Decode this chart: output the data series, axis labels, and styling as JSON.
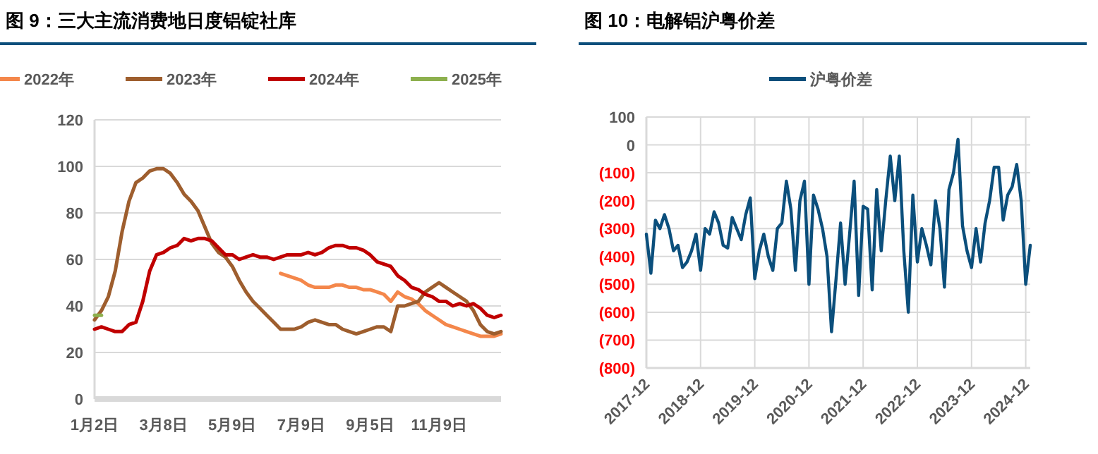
{
  "chart_data": [
    {
      "type": "line",
      "title": "图 9：三大主流消费地日度铝锭社库",
      "legend": "top",
      "grid": "y",
      "marker": "none",
      "line_style": "solid",
      "categories": [
        "1月2日",
        null,
        null,
        null,
        null,
        null,
        null,
        null,
        null,
        null,
        "3月8日",
        null,
        null,
        null,
        null,
        null,
        null,
        null,
        null,
        null,
        "5月9日",
        null,
        null,
        null,
        null,
        null,
        null,
        null,
        null,
        null,
        "7月9日",
        null,
        null,
        null,
        null,
        null,
        null,
        null,
        null,
        null,
        "9月5日",
        null,
        null,
        null,
        null,
        null,
        null,
        null,
        null,
        null,
        "11月9日",
        null,
        null,
        null,
        null,
        null,
        null,
        null,
        null,
        null
      ],
      "ylim": [
        0,
        120
      ],
      "yticks": [
        0,
        20,
        40,
        60,
        80,
        100,
        120
      ],
      "series": [
        {
          "name": "2022年",
          "color": "#f4874b",
          "values": [
            null,
            null,
            null,
            null,
            null,
            null,
            null,
            null,
            null,
            null,
            null,
            null,
            null,
            null,
            null,
            null,
            null,
            null,
            null,
            null,
            null,
            null,
            null,
            null,
            null,
            null,
            null,
            54,
            53,
            52,
            51,
            49,
            48,
            48,
            48,
            49,
            49,
            48,
            48,
            47,
            47,
            46,
            45,
            42,
            46,
            44,
            43,
            41,
            38,
            36,
            34,
            32,
            31,
            30,
            29,
            28,
            27,
            27,
            27,
            28
          ]
        },
        {
          "name": "2023年",
          "color": "#9e5e2e",
          "values": [
            34,
            38,
            44,
            55,
            72,
            85,
            93,
            95,
            98,
            99,
            99,
            97,
            93,
            88,
            85,
            81,
            74,
            67,
            63,
            61,
            57,
            51,
            46,
            42,
            39,
            36,
            33,
            30,
            30,
            30,
            31,
            33,
            34,
            33,
            32,
            32,
            30,
            29,
            28,
            29,
            30,
            31,
            31,
            29,
            40,
            40,
            41,
            42,
            46,
            48,
            50,
            48,
            46,
            44,
            42,
            38,
            32,
            29,
            28,
            29
          ]
        },
        {
          "name": "2024年",
          "color": "#c00000",
          "values": [
            30,
            31,
            30,
            29,
            29,
            32,
            33,
            42,
            55,
            62,
            63,
            65,
            66,
            69,
            68,
            69,
            69,
            68,
            65,
            62,
            62,
            60,
            61,
            62,
            61,
            61,
            60,
            61,
            62,
            62,
            62,
            63,
            62,
            63,
            65,
            66,
            66,
            65,
            65,
            64,
            62,
            59,
            58,
            57,
            53,
            51,
            48,
            47,
            45,
            44,
            42,
            42,
            40,
            41,
            40,
            41,
            39,
            36,
            35,
            36
          ]
        },
        {
          "name": "2025年",
          "color": "#8db04e",
          "values": [
            36,
            36,
            null,
            null,
            null,
            null,
            null,
            null,
            null,
            null,
            null,
            null,
            null,
            null,
            null,
            null,
            null,
            null,
            null,
            null,
            null,
            null,
            null,
            null,
            null,
            null,
            null,
            null,
            null,
            null,
            null,
            null,
            null,
            null,
            null,
            null,
            null,
            null,
            null,
            null,
            null,
            null,
            null,
            null,
            null,
            null,
            null,
            null,
            null,
            null,
            null,
            null,
            null,
            null,
            null,
            null,
            null,
            null,
            null,
            null
          ]
        }
      ]
    },
    {
      "type": "line",
      "title": "图 10：电解铝沪粤价差",
      "legend": "top",
      "grid": true,
      "marker": "none",
      "line_style": "solid",
      "categories": [
        "2017-12",
        null,
        null,
        null,
        null,
        null,
        null,
        null,
        null,
        null,
        null,
        null,
        "2018-12",
        null,
        null,
        null,
        null,
        null,
        null,
        null,
        null,
        null,
        null,
        null,
        "2019-12",
        null,
        null,
        null,
        null,
        null,
        null,
        null,
        null,
        null,
        null,
        null,
        "2020-12",
        null,
        null,
        null,
        null,
        null,
        null,
        null,
        null,
        null,
        null,
        null,
        "2021-12",
        null,
        null,
        null,
        null,
        null,
        null,
        null,
        null,
        null,
        null,
        null,
        "2022-12",
        null,
        null,
        null,
        null,
        null,
        null,
        null,
        null,
        null,
        null,
        null,
        "2023-12",
        null,
        null,
        null,
        null,
        null,
        null,
        null,
        null,
        null,
        null,
        null,
        "2024-12",
        null
      ],
      "ylim": [
        -800,
        100
      ],
      "yticks": [
        100,
        0,
        {
          "value": -100,
          "label": "(100)"
        },
        {
          "value": -200,
          "label": "(200)"
        },
        {
          "value": -300,
          "label": "(300)"
        },
        {
          "value": -400,
          "label": "(400)"
        },
        {
          "value": -500,
          "label": "(500)"
        },
        {
          "value": -600,
          "label": "(600)"
        },
        {
          "value": -700,
          "label": "(700)"
        },
        {
          "value": -800,
          "label": "(800)"
        }
      ],
      "series": [
        {
          "name": "沪粤价差",
          "color": "#0b4f7c",
          "values": [
            -320,
            -460,
            -270,
            -300,
            -250,
            -300,
            -380,
            -360,
            -440,
            -420,
            -380,
            -320,
            -450,
            -300,
            -320,
            -240,
            -280,
            -360,
            -370,
            -260,
            -300,
            -340,
            -250,
            -190,
            -480,
            -380,
            -320,
            -400,
            -450,
            -300,
            -280,
            -130,
            -230,
            -450,
            -200,
            -130,
            -500,
            -180,
            -230,
            -300,
            -400,
            -670,
            -480,
            -280,
            -500,
            -320,
            -130,
            -540,
            -220,
            -230,
            -520,
            -160,
            -380,
            -200,
            -40,
            -200,
            -40,
            -380,
            -600,
            -180,
            -420,
            -300,
            -360,
            -430,
            -200,
            -300,
            -510,
            -160,
            -100,
            20,
            -290,
            -380,
            -440,
            -300,
            -420,
            -280,
            -200,
            -80,
            -80,
            -270,
            -180,
            -150,
            -70,
            -200,
            -500,
            -360
          ]
        }
      ]
    }
  ]
}
